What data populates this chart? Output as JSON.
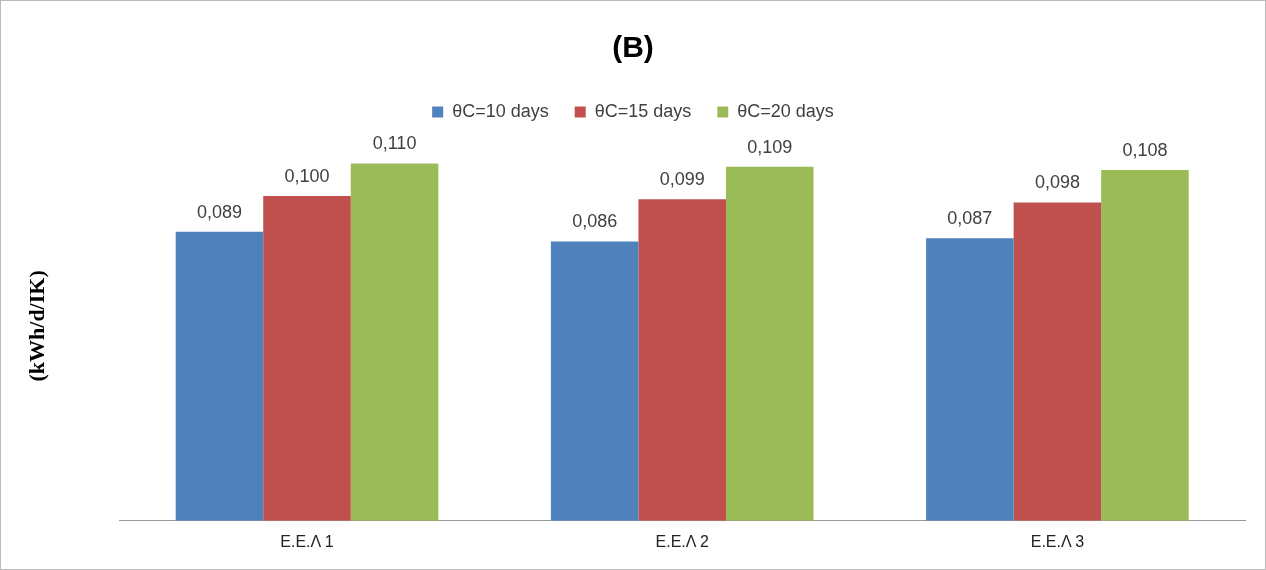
{
  "chart_data": {
    "type": "bar",
    "title": "(B)",
    "ylabel": "(kWh/d/IK)",
    "categories": [
      "Ε.Ε.Λ 1",
      "Ε.Ε.Λ 2",
      "Ε.Ε.Λ 3"
    ],
    "series": [
      {
        "name": "θC=10 days",
        "color": "#4f81bd",
        "values": [
          0.089,
          0.086,
          0.087
        ],
        "value_labels": [
          "0,089",
          "0,086",
          "0,087"
        ]
      },
      {
        "name": "θC=15 days",
        "color": "#c0504d",
        "values": [
          0.1,
          0.099,
          0.098
        ],
        "value_labels": [
          "0,100",
          "0,099",
          "0,098"
        ]
      },
      {
        "name": "θC=20 days",
        "color": "#9bbb59",
        "values": [
          0.11,
          0.109,
          0.108
        ],
        "value_labels": [
          "0,110",
          "0,109",
          "0,108"
        ]
      }
    ],
    "legend": "top",
    "grid": false,
    "tick_labels": "x"
  }
}
